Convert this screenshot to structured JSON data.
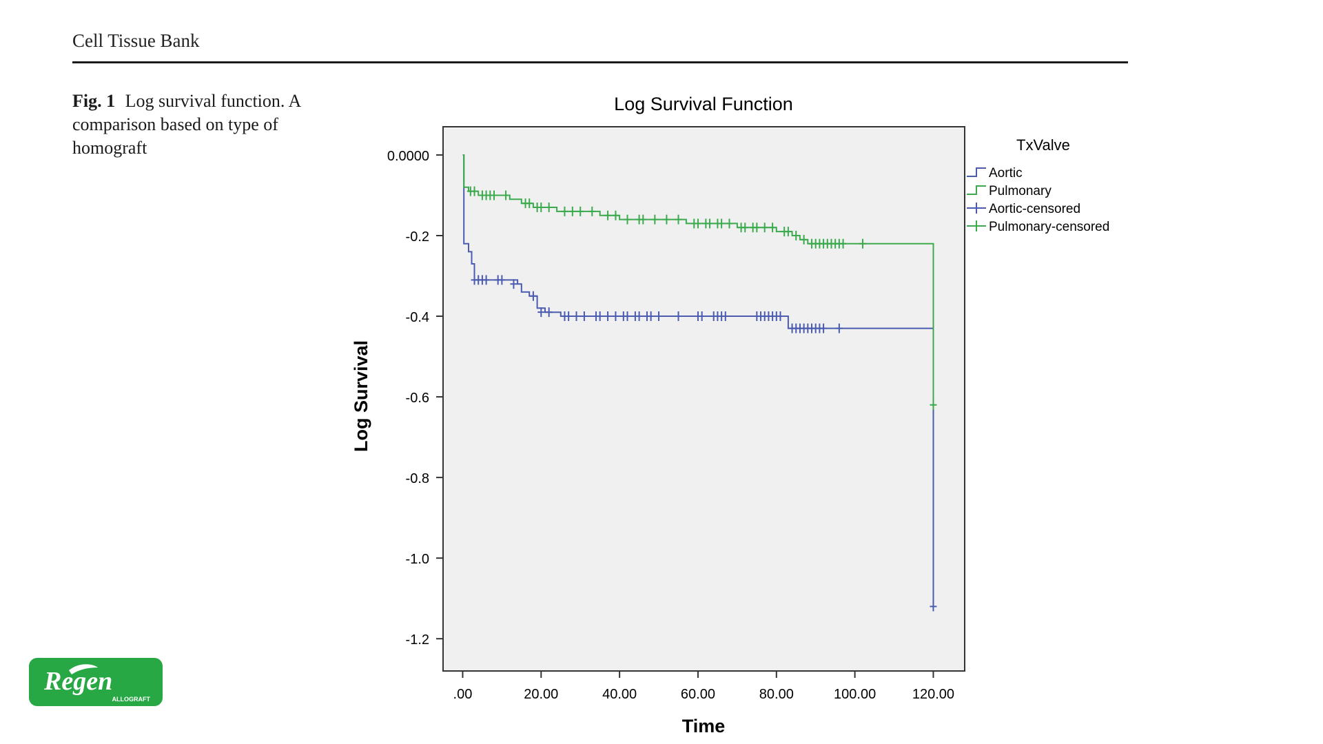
{
  "header": {
    "journal": "Cell Tissue Bank"
  },
  "caption": {
    "label": "Fig. 1",
    "text": "Log survival function. A comparison based on type of homograft"
  },
  "logo": {
    "brand": "Regen",
    "sub": "ALLOGRAFT"
  },
  "colors": {
    "aortic": "#4a5bb0",
    "pulmonary": "#3aaa4c",
    "plot_bg": "#f0f0f0"
  },
  "chart_data": {
    "type": "line",
    "title": "Log Survival Function",
    "xlabel": "Time",
    "ylabel": "Log Survival",
    "xlim": [
      -5,
      128
    ],
    "ylim": [
      -1.28,
      0.07
    ],
    "x_ticks": [
      0,
      20,
      40,
      60,
      80,
      100,
      120
    ],
    "x_tick_labels": [
      ".00",
      "20.00",
      "40.00",
      "60.00",
      "80.00",
      "100.00",
      "120.00"
    ],
    "y_ticks": [
      0,
      -0.2,
      -0.4,
      -0.6,
      -0.8,
      -1.0,
      -1.2
    ],
    "y_tick_labels": [
      "0.0000",
      "-0.2",
      "-0.4",
      "-0.6",
      "-0.8",
      "-1.0",
      "-1.2"
    ],
    "legend_title": "TxValve",
    "legend_position": "right",
    "legend": [
      "Aortic",
      "Pulmonary",
      "Aortic-censored",
      "Pulmonary-censored"
    ],
    "series": [
      {
        "name": "Aortic",
        "color": "#4a5bb0",
        "steps": [
          [
            0,
            0
          ],
          [
            0.3,
            -0.22
          ],
          [
            1.5,
            -0.24
          ],
          [
            2.3,
            -0.27
          ],
          [
            3,
            -0.31
          ],
          [
            14,
            -0.32
          ],
          [
            15,
            -0.34
          ],
          [
            17,
            -0.35
          ],
          [
            19,
            -0.38
          ],
          [
            21,
            -0.39
          ],
          [
            25,
            -0.4
          ],
          [
            83,
            -0.43
          ],
          [
            120,
            -1.12
          ]
        ],
        "censored": [
          [
            3,
            -0.31
          ],
          [
            4,
            -0.31
          ],
          [
            5,
            -0.31
          ],
          [
            6,
            -0.31
          ],
          [
            9,
            -0.31
          ],
          [
            10,
            -0.31
          ],
          [
            13,
            -0.32
          ],
          [
            18,
            -0.35
          ],
          [
            20,
            -0.39
          ],
          [
            22,
            -0.39
          ],
          [
            26,
            -0.4
          ],
          [
            27,
            -0.4
          ],
          [
            29,
            -0.4
          ],
          [
            31,
            -0.4
          ],
          [
            34,
            -0.4
          ],
          [
            35,
            -0.4
          ],
          [
            37,
            -0.4
          ],
          [
            39,
            -0.4
          ],
          [
            41,
            -0.4
          ],
          [
            42,
            -0.4
          ],
          [
            44,
            -0.4
          ],
          [
            45,
            -0.4
          ],
          [
            47,
            -0.4
          ],
          [
            48,
            -0.4
          ],
          [
            50,
            -0.4
          ],
          [
            55,
            -0.4
          ],
          [
            60,
            -0.4
          ],
          [
            61,
            -0.4
          ],
          [
            64,
            -0.4
          ],
          [
            65,
            -0.4
          ],
          [
            66,
            -0.4
          ],
          [
            67,
            -0.4
          ],
          [
            75,
            -0.4
          ],
          [
            76,
            -0.4
          ],
          [
            77,
            -0.4
          ],
          [
            78,
            -0.4
          ],
          [
            79,
            -0.4
          ],
          [
            80,
            -0.4
          ],
          [
            81,
            -0.4
          ],
          [
            84,
            -0.43
          ],
          [
            85,
            -0.43
          ],
          [
            86,
            -0.43
          ],
          [
            87,
            -0.43
          ],
          [
            88,
            -0.43
          ],
          [
            89,
            -0.43
          ],
          [
            90,
            -0.43
          ],
          [
            91,
            -0.43
          ],
          [
            92,
            -0.43
          ],
          [
            96,
            -0.43
          ],
          [
            120,
            -1.12
          ]
        ]
      },
      {
        "name": "Pulmonary",
        "color": "#3aaa4c",
        "steps": [
          [
            0,
            0
          ],
          [
            0.3,
            -0.08
          ],
          [
            1.5,
            -0.09
          ],
          [
            4,
            -0.1
          ],
          [
            12,
            -0.11
          ],
          [
            15,
            -0.12
          ],
          [
            18,
            -0.13
          ],
          [
            24,
            -0.14
          ],
          [
            35,
            -0.15
          ],
          [
            40,
            -0.16
          ],
          [
            57,
            -0.17
          ],
          [
            70,
            -0.18
          ],
          [
            80,
            -0.19
          ],
          [
            84,
            -0.2
          ],
          [
            86,
            -0.21
          ],
          [
            88,
            -0.22
          ],
          [
            120,
            -0.62
          ]
        ],
        "censored": [
          [
            2,
            -0.09
          ],
          [
            3,
            -0.09
          ],
          [
            5,
            -0.1
          ],
          [
            6,
            -0.1
          ],
          [
            7,
            -0.1
          ],
          [
            8,
            -0.1
          ],
          [
            11,
            -0.1
          ],
          [
            16,
            -0.12
          ],
          [
            17,
            -0.12
          ],
          [
            19,
            -0.13
          ],
          [
            20,
            -0.13
          ],
          [
            22,
            -0.13
          ],
          [
            26,
            -0.14
          ],
          [
            28,
            -0.14
          ],
          [
            30,
            -0.14
          ],
          [
            33,
            -0.14
          ],
          [
            37,
            -0.15
          ],
          [
            39,
            -0.15
          ],
          [
            42,
            -0.16
          ],
          [
            45,
            -0.16
          ],
          [
            46,
            -0.16
          ],
          [
            49,
            -0.16
          ],
          [
            52,
            -0.16
          ],
          [
            55,
            -0.16
          ],
          [
            59,
            -0.17
          ],
          [
            60,
            -0.17
          ],
          [
            62,
            -0.17
          ],
          [
            63,
            -0.17
          ],
          [
            65,
            -0.17
          ],
          [
            66,
            -0.17
          ],
          [
            68,
            -0.17
          ],
          [
            71,
            -0.18
          ],
          [
            72,
            -0.18
          ],
          [
            74,
            -0.18
          ],
          [
            75,
            -0.18
          ],
          [
            77,
            -0.18
          ],
          [
            79,
            -0.18
          ],
          [
            82,
            -0.19
          ],
          [
            83,
            -0.19
          ],
          [
            85,
            -0.2
          ],
          [
            87,
            -0.21
          ],
          [
            89,
            -0.22
          ],
          [
            90,
            -0.22
          ],
          [
            91,
            -0.22
          ],
          [
            92,
            -0.22
          ],
          [
            93,
            -0.22
          ],
          [
            94,
            -0.22
          ],
          [
            95,
            -0.22
          ],
          [
            96,
            -0.22
          ],
          [
            97,
            -0.22
          ],
          [
            102,
            -0.22
          ],
          [
            120,
            -0.62
          ]
        ]
      }
    ]
  }
}
